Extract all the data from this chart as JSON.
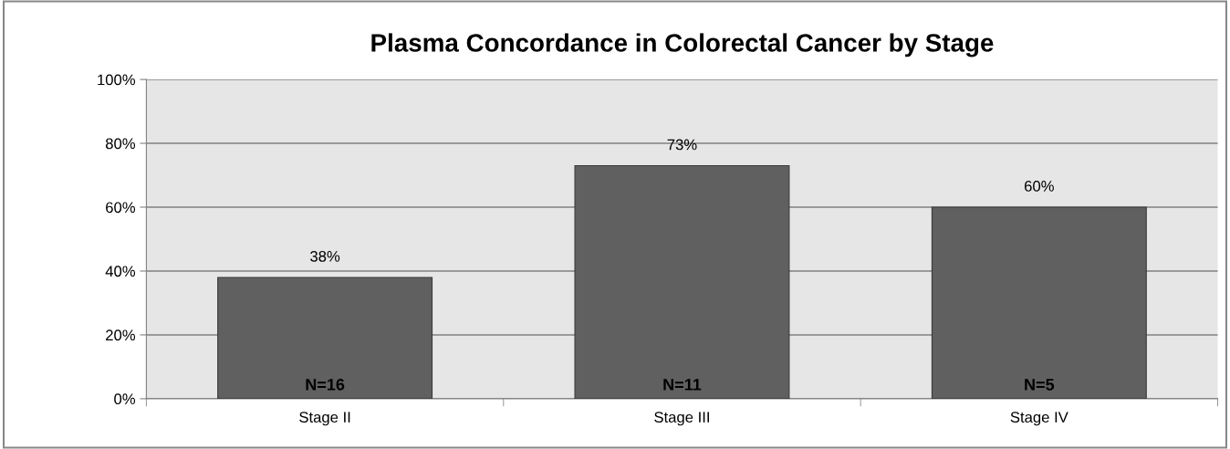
{
  "chart_data": {
    "type": "bar",
    "title": "Plasma Concordance in Colorectal Cancer by Stage",
    "categories": [
      "Stage II",
      "Stage III",
      "Stage IV"
    ],
    "values": [
      38,
      73,
      60
    ],
    "color": "#606060",
    "data_labels": true,
    "value_labels": [
      "38%",
      "73%",
      "60%"
    ],
    "annotations": [
      "N=16",
      "N=11",
      "N=5"
    ],
    "ylim": [
      0,
      100
    ],
    "yticks": [
      {
        "value": 0,
        "label": "0%"
      },
      {
        "value": 20,
        "label": "20%"
      },
      {
        "value": 40,
        "label": "40%"
      },
      {
        "value": 60,
        "label": "60%"
      },
      {
        "value": 80,
        "label": "80%"
      },
      {
        "value": 100,
        "label": "100%"
      }
    ],
    "grid": "y",
    "legend": false
  }
}
